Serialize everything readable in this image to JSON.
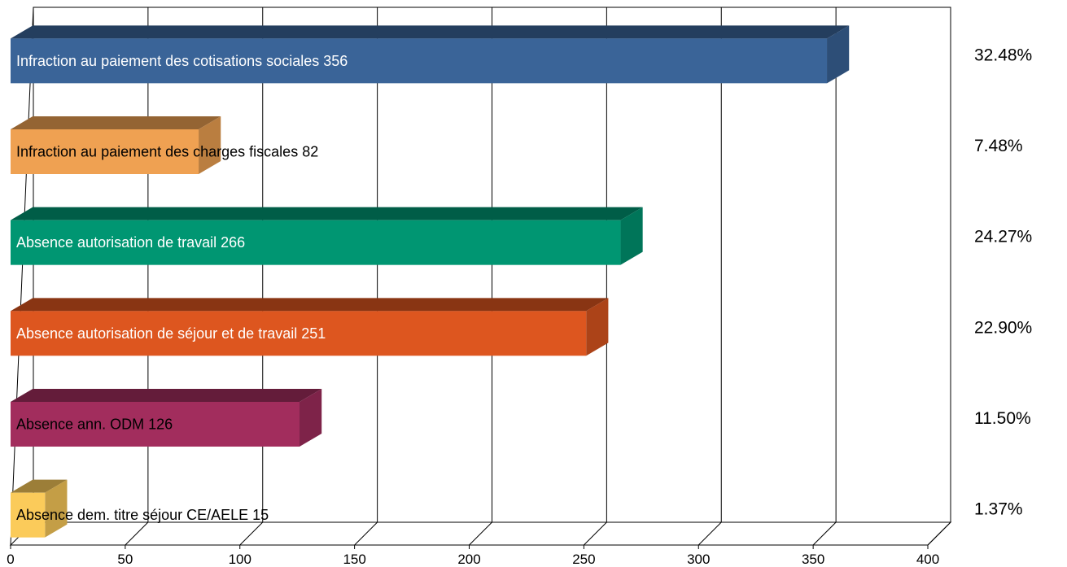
{
  "chart_data": {
    "type": "bar",
    "orientation": "horizontal",
    "style": "3d",
    "categories": [
      "Infraction au paiement des cotisations sociales 356",
      "Infraction au paiement des charges fiscales 82",
      "Absence autorisation de travail 266",
      "Absence autorisation de séjour  et de travail 251",
      "Absence ann. ODM 126",
      "Absence dem. titre séjour CE/AELE 15"
    ],
    "values": [
      356,
      82,
      266,
      251,
      126,
      15
    ],
    "percentages": [
      "32.48%",
      "7.48%",
      "24.27%",
      "22.90%",
      "11.50%",
      "1.37%"
    ],
    "colors": [
      "#3A6498",
      "#EFA152",
      "#009672",
      "#DD561F",
      "#A22D5D",
      "#FBCB5A"
    ],
    "label_colors": [
      "#ffffff",
      "#000000",
      "#ffffff",
      "#ffffff",
      "#000000",
      "#000000"
    ],
    "x_ticks": [
      "0",
      "50",
      "100",
      "150",
      "200",
      "250",
      "300",
      "350",
      "400"
    ],
    "xlim": [
      0,
      400
    ],
    "grid": true,
    "legend": "none",
    "title": "",
    "xlabel": "",
    "ylabel": ""
  }
}
